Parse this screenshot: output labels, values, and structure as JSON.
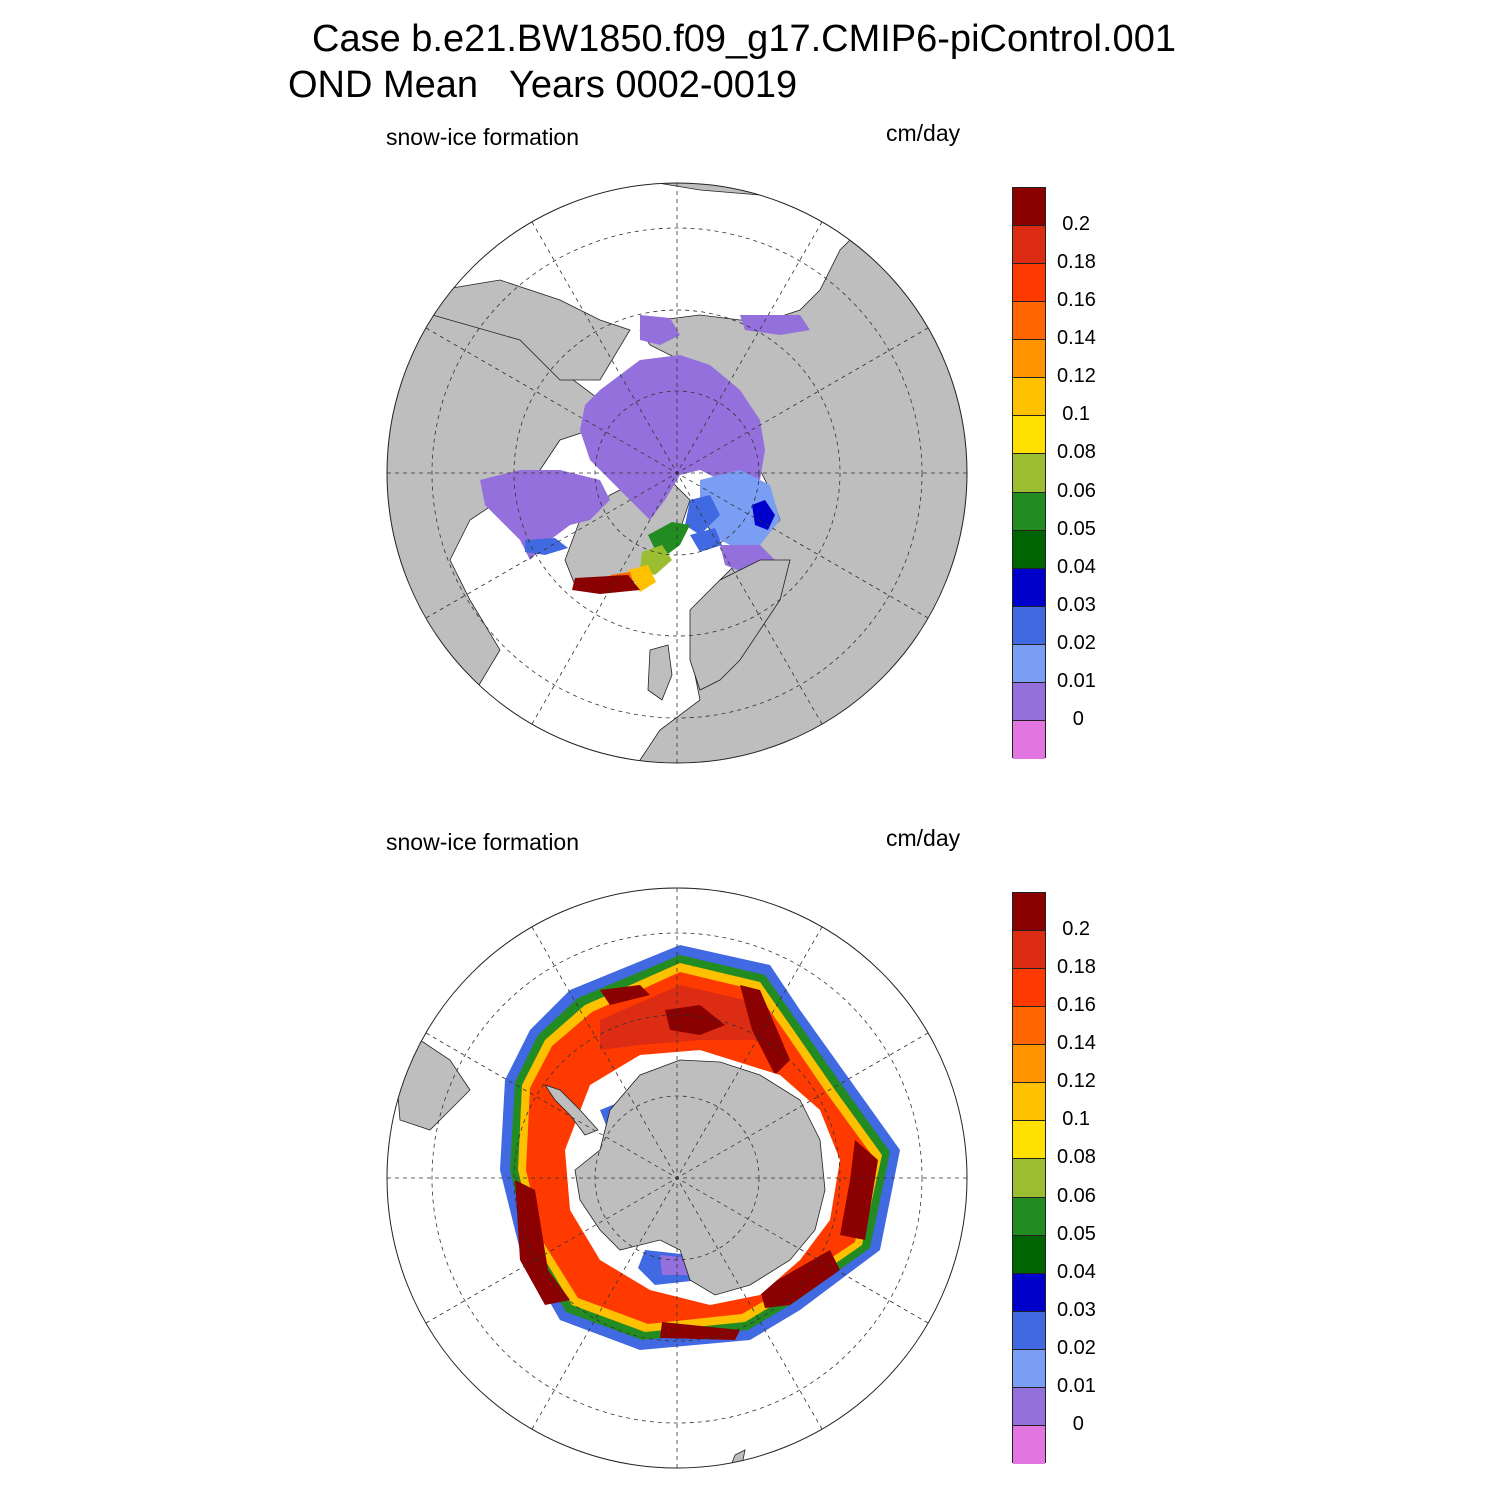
{
  "figure": {
    "title_line1": "Case b.e21.BW1850.f09_g17.CMIP6-piControl.001",
    "title_line2": "OND Mean   Years 0002-0019"
  },
  "panels": [
    {
      "id": "arctic",
      "label": "snow-ice formation",
      "units": "cm/day"
    },
    {
      "id": "antarctic",
      "label": "snow-ice formation",
      "units": "cm/day"
    }
  ],
  "colorbar": {
    "levels": [
      "0.2",
      "0.18",
      "0.16",
      "0.14",
      "0.12",
      "0.1",
      "0.08",
      "0.06",
      "0.05",
      "0.04",
      "0.03",
      "0.02",
      "0.01",
      "0"
    ],
    "colors_top_to_bottom": [
      "#8b0000",
      "#dc2c14",
      "#ff3a00",
      "#ff6600",
      "#ff9400",
      "#ffc000",
      "#ffe000",
      "#9abd32",
      "#228b22",
      "#006400",
      "#0000cd",
      "#4169e1",
      "#7b9ef5",
      "#9370db",
      "#e276e0"
    ]
  },
  "colors": {
    "land": "#bebebe",
    "ocean": "#ffffff",
    "grid": "#333333"
  }
}
